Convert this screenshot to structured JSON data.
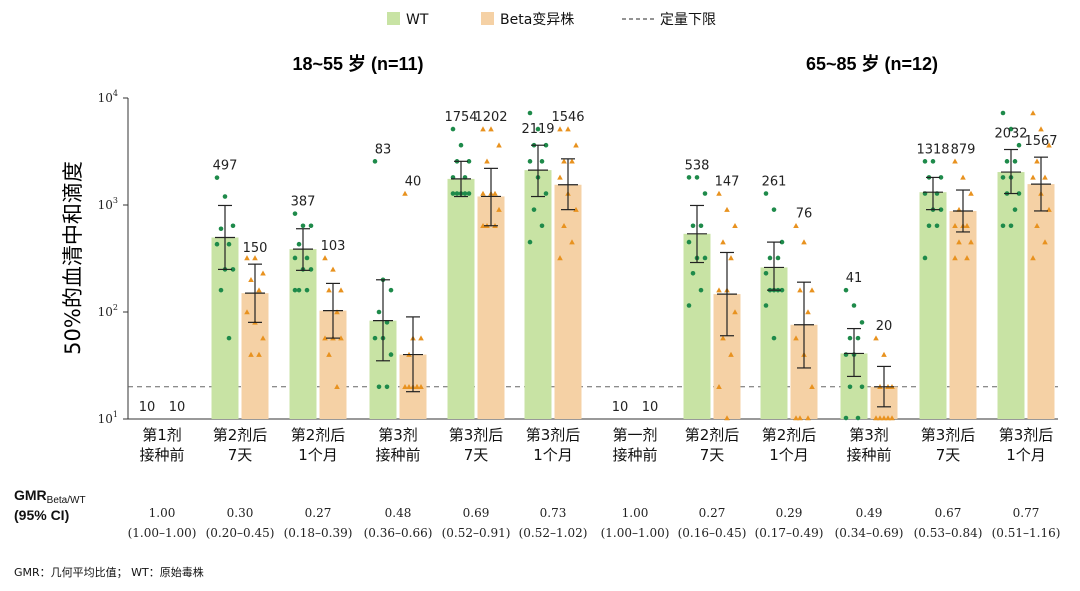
{
  "legend": {
    "wt": "WT",
    "beta": "Beta变异株",
    "lloq": "定量下限"
  },
  "colors": {
    "wt_bar": "#c8e3a4",
    "wt_dot": "#1e8a4a",
    "beta_bar": "#f5d1a5",
    "beta_dot": "#e8921f",
    "error": "#222222",
    "lloq_line": "#666666"
  },
  "y_axis": {
    "label": "50%的血清中和滴度",
    "ticks": [
      {
        "base": "10",
        "exp": "1"
      },
      {
        "base": "10",
        "exp": "2"
      },
      {
        "base": "10",
        "exp": "3"
      },
      {
        "base": "10",
        "exp": "4"
      }
    ]
  },
  "gmr_header": {
    "line1_main": "GMR",
    "line1_sub": "Beta/WT",
    "line2": "(95% CI)"
  },
  "footnote": "GMR：几何平均比值； WT：原始毒株",
  "chart_data": {
    "type": "bar",
    "y_scale": "log10",
    "ylim": [
      10,
      10000
    ],
    "lloq": 20,
    "series_names": [
      "WT",
      "Beta变异株"
    ],
    "panels": [
      {
        "title": "18~55 岁 (n=11)",
        "groups": [
          {
            "line1": "第1剂",
            "line2": "接种前",
            "wt": {
              "label": "10",
              "value": 10,
              "ci": null,
              "points": []
            },
            "beta": {
              "label": "10",
              "value": 10,
              "ci": null,
              "points": []
            },
            "gmr": "1.00",
            "ci_text": "(1.00–1.00)"
          },
          {
            "line1": "第2剂后",
            "line2": "7天",
            "wt": {
              "label": "497",
              "value": 497,
              "ci": [
                250,
                990
              ],
              "points": [
                1800,
                1200,
                640,
                600,
                430,
                430,
                250,
                250,
                160,
                57
              ]
            },
            "beta": {
              "label": "150",
              "value": 150,
              "ci": [
                80,
                280
              ],
              "points": [
                320,
                320,
                230,
                200,
                160,
                100,
                80,
                57,
                40,
                40
              ]
            },
            "gmr": "0.30",
            "ci_text": "(0.20–0.45)"
          },
          {
            "line1": "第2剂后",
            "line2": "1个月",
            "wt": {
              "label": "387",
              "value": 387,
              "ci": [
                245,
                600
              ],
              "points": [
                830,
                640,
                640,
                430,
                320,
                320,
                250,
                250,
                160,
                160,
                160
              ]
            },
            "beta": {
              "label": "103",
              "value": 103,
              "ci": [
                57,
                185
              ],
              "points": [
                320,
                250,
                160,
                160,
                100,
                57,
                57,
                57,
                40,
                20
              ]
            },
            "gmr": "0.27",
            "ci_text": "(0.18–0.39)"
          },
          {
            "line1": "第3剂",
            "line2": "接种前",
            "wt": {
              "label": "83",
              "value": 83,
              "ci": [
                35,
                200
              ],
              "points": [
                2560,
                200,
                160,
                100,
                80,
                57,
                57,
                40,
                20,
                20
              ]
            },
            "beta": {
              "label": "40",
              "value": 40,
              "ci": [
                18,
                90
              ],
              "points": [
                1280,
                57,
                57,
                40,
                20,
                20,
                20,
                20,
                20,
                20
              ]
            },
            "gmr": "0.48",
            "ci_text": "(0.36–0.66)"
          },
          {
            "line1": "第3剂后",
            "line2": "7天",
            "wt": {
              "label": "1754",
              "value": 1754,
              "ci": [
                1200,
                2560
              ],
              "points": [
                5120,
                3620,
                2560,
                2560,
                1810,
                1810,
                1280,
                1280,
                1280,
                1280,
                1280
              ]
            },
            "beta": {
              "label": "1202",
              "value": 1202,
              "ci": [
                640,
                2200
              ],
              "points": [
                5120,
                5120,
                3620,
                2560,
                1280,
                1280,
                1280,
                905,
                640,
                640,
                640
              ]
            },
            "gmr": "0.69",
            "ci_text": "(0.52–0.91)"
          },
          {
            "line1": "第3剂后",
            "line2": "1个月",
            "wt": {
              "label": "2119",
              "value": 2119,
              "ci": [
                1200,
                3620
              ],
              "points": [
                7240,
                5120,
                3620,
                3620,
                2560,
                2560,
                1810,
                1280,
                905,
                640,
                450
              ]
            },
            "beta": {
              "label": "1546",
              "value": 1546,
              "ci": [
                905,
                2700
              ],
              "points": [
                5120,
                5120,
                3620,
                2560,
                2560,
                1810,
                1280,
                905,
                640,
                450,
                320
              ]
            },
            "gmr": "0.73",
            "ci_text": "(0.52–1.02)"
          }
        ]
      },
      {
        "title": "65~85 岁 (n=12)",
        "groups": [
          {
            "line1": "第一剂",
            "line2": "接种前",
            "wt": {
              "label": "10",
              "value": 10,
              "ci": null,
              "points": []
            },
            "beta": {
              "label": "10",
              "value": 10,
              "ci": null,
              "points": []
            },
            "gmr": "1.00",
            "ci_text": "(1.00–1.00)"
          },
          {
            "line1": "第2剂后",
            "line2": "7天",
            "wt": {
              "label": "538",
              "value": 538,
              "ci": [
                290,
                990
              ],
              "points": [
                1810,
                1810,
                1280,
                640,
                640,
                450,
                320,
                320,
                230,
                160,
                115
              ]
            },
            "beta": {
              "label": "147",
              "value": 147,
              "ci": [
                60,
                360
              ],
              "points": [
                1280,
                905,
                640,
                450,
                320,
                160,
                160,
                100,
                57,
                40,
                20,
                10
              ]
            },
            "gmr": "0.27",
            "ci_text": "(0.16–0.45)"
          },
          {
            "line1": "第2剂后",
            "line2": "1个月",
            "wt": {
              "label": "261",
              "value": 261,
              "ci": [
                160,
                450
              ],
              "points": [
                1280,
                905,
                450,
                320,
                320,
                230,
                160,
                160,
                160,
                160,
                115,
                57
              ]
            },
            "beta": {
              "label": "76",
              "value": 76,
              "ci": [
                30,
                190
              ],
              "points": [
                640,
                450,
                160,
                160,
                100,
                57,
                40,
                20,
                10,
                10,
                10
              ]
            },
            "gmr": "0.29",
            "ci_text": "(0.17–0.49)"
          },
          {
            "line1": "第3剂",
            "line2": "接种前",
            "wt": {
              "label": "41",
              "value": 41,
              "ci": [
                25,
                70
              ],
              "points": [
                160,
                115,
                80,
                57,
                57,
                40,
                40,
                20,
                20,
                10,
                10
              ]
            },
            "beta": {
              "label": "20",
              "value": 20,
              "ci": [
                13,
                31
              ],
              "points": [
                57,
                40,
                20,
                20,
                20,
                10,
                10,
                10,
                10,
                10
              ]
            },
            "gmr": "0.49",
            "ci_text": "(0.34–0.69)"
          },
          {
            "line1": "第3剂后",
            "line2": "7天",
            "wt": {
              "label": "1318",
              "value": 1318,
              "ci": [
                905,
                1810
              ],
              "points": [
                2560,
                2560,
                1810,
                1810,
                1280,
                1280,
                905,
                905,
                640,
                640,
                320
              ]
            },
            "beta": {
              "label": "879",
              "value": 879,
              "ci": [
                560,
                1380
              ],
              "points": [
                2560,
                1810,
                1280,
                905,
                640,
                640,
                640,
                450,
                450,
                320,
                320
              ]
            },
            "gmr": "0.67",
            "ci_text": "(0.53–0.84)"
          },
          {
            "line1": "第3剂后",
            "line2": "1个月",
            "wt": {
              "label": "2032",
              "value": 2032,
              "ci": [
                1280,
                3300
              ],
              "points": [
                7240,
                5120,
                3620,
                2560,
                2560,
                1810,
                1810,
                1280,
                1280,
                905,
                640,
                640
              ]
            },
            "beta": {
              "label": "1567",
              "value": 1567,
              "ci": [
                880,
                2800
              ],
              "points": [
                7240,
                5120,
                3620,
                2560,
                1810,
                1810,
                1280,
                905,
                640,
                450,
                320
              ]
            },
            "gmr": "0.77",
            "ci_text": "(0.51–1.16)"
          }
        ]
      }
    ]
  }
}
